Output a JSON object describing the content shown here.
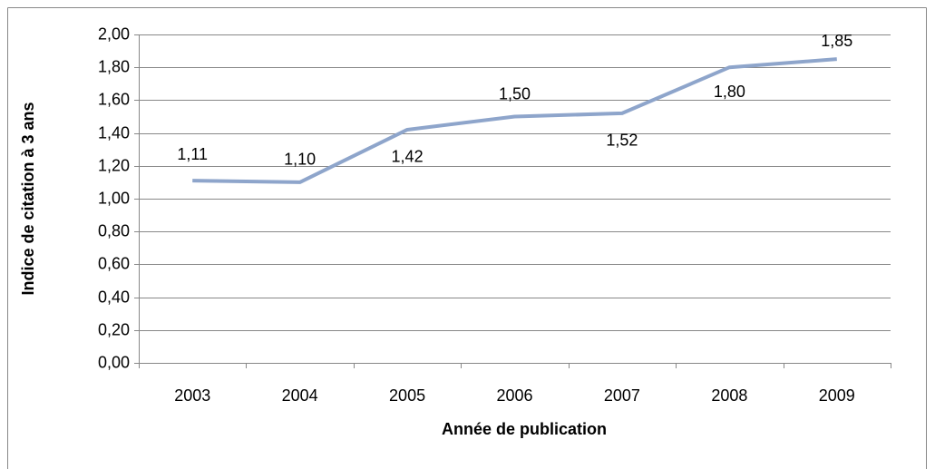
{
  "chart_data": {
    "type": "line",
    "x_label": "Année de publication",
    "y_label": "Indice de citation à 3 ans",
    "categories": [
      "2003",
      "2004",
      "2005",
      "2006",
      "2007",
      "2008",
      "2009"
    ],
    "values": [
      1.11,
      1.1,
      1.42,
      1.5,
      1.52,
      1.8,
      1.85
    ],
    "value_labels": [
      "1,11",
      "1,10",
      "1,42",
      "1,50",
      "1,52",
      "1,80",
      "1,85"
    ],
    "color": "#8ea5cb",
    "ylim": [
      0,
      2
    ],
    "yticks": [
      {
        "value": 0,
        "label": "0,00"
      },
      {
        "value": 0.2,
        "label": "0,20"
      },
      {
        "value": 0.4,
        "label": "0,40"
      },
      {
        "value": 0.6,
        "label": "0,60"
      },
      {
        "value": 0.8,
        "label": "0,80"
      },
      {
        "value": 1,
        "label": "1,00"
      },
      {
        "value": 1.2,
        "label": "1,20"
      },
      {
        "value": 1.4,
        "label": "1,40"
      },
      {
        "value": 1.6,
        "label": "1,60"
      },
      {
        "value": 1.8,
        "label": "1,80"
      },
      {
        "value": 2,
        "label": "2,00"
      }
    ],
    "grid": true
  }
}
